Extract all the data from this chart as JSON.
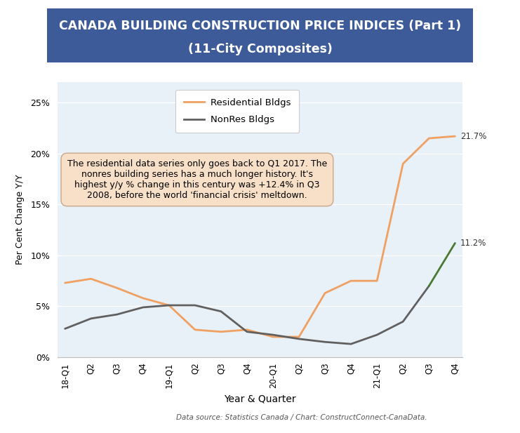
{
  "title_line1": "CANADA BUILDING CONSTRUCTION PRICE INDICES (Part 1)",
  "title_line2": "(11-City Composites)",
  "title_bg_color": "#3D5A99",
  "title_text_color": "#FFFFFF",
  "xlabel": "Year & Quarter",
  "ylabel": "Per Cent Change Y/Y",
  "source_text": "Data source: Statistics Canada / Chart: ConstructConnect-CanaData.",
  "x_labels": [
    "18-Q1",
    "Q2",
    "Q3",
    "Q4",
    "19-Q1",
    "Q2",
    "Q3",
    "Q4",
    "20-Q1",
    "Q2",
    "Q3",
    "Q4",
    "21-Q1",
    "Q2",
    "Q3",
    "Q4"
  ],
  "residential": [
    7.3,
    7.7,
    6.8,
    5.8,
    5.1,
    2.7,
    2.5,
    2.7,
    2.0,
    2.0,
    6.3,
    7.5,
    7.5,
    19.0,
    21.5,
    21.7
  ],
  "nonres": [
    2.8,
    3.8,
    4.2,
    4.9,
    5.1,
    5.1,
    4.5,
    2.5,
    2.2,
    1.8,
    1.5,
    1.3,
    2.2,
    3.5,
    7.0,
    11.2
  ],
  "nonres_last_segment_color": "#4A7A30",
  "residential_color": "#F0A060",
  "nonres_color": "#606060",
  "plot_bg_color": "#E8F0F8",
  "annotation_text": "The residential data series only goes back to Q1 2017. The\nnonres building series has a much longer history. It's\nhighest y/y % change in this century was +12.4% in Q3\n2008, before the world 'financial crisis' meltdown.",
  "annotation_bg": "#F8DFC8",
  "annotation_edge": "#C8A888",
  "ylim": [
    0,
    27
  ],
  "yticks": [
    0,
    5,
    10,
    15,
    20,
    25
  ],
  "ytick_labels": [
    "0%",
    "5%",
    "10%",
    "15%",
    "20%",
    "25%"
  ],
  "res_label": "Residential Bldgs",
  "nonres_label": "NonRes Bldgs",
  "label_21_7": "21.7%",
  "label_11_2": "11.2%",
  "fig_bg_color": "#FFFFFF",
  "nonres_split_idx": 14
}
